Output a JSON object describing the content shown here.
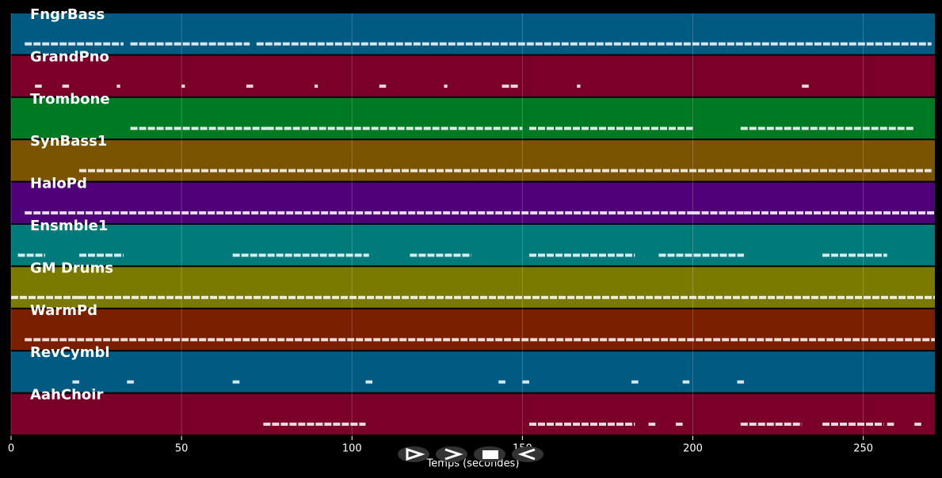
{
  "chart_data": {
    "type": "pianoroll",
    "xlabel": "Temps (secondes)",
    "xlim": [
      0,
      271
    ],
    "xticks": [
      0,
      50,
      100,
      150,
      200,
      250
    ],
    "grid": true,
    "tracks": [
      {
        "name": "FngrBass",
        "color": "#005a82",
        "notes": [
          [
            4,
            33
          ],
          [
            35,
            70
          ],
          [
            72,
            270
          ]
        ]
      },
      {
        "name": "GrandPno",
        "color": "#7a002a",
        "notes": [
          [
            7,
            9
          ],
          [
            15,
            17
          ],
          [
            31,
            32
          ],
          [
            50,
            51
          ],
          [
            69,
            71
          ],
          [
            89,
            90
          ],
          [
            108,
            110
          ],
          [
            127,
            128
          ],
          [
            144,
            149
          ],
          [
            166,
            167
          ],
          [
            232,
            234
          ]
        ]
      },
      {
        "name": "Trombone",
        "color": "#007a22",
        "notes": [
          [
            35,
            75
          ],
          [
            75,
            150
          ],
          [
            152,
            200
          ],
          [
            214,
            265
          ]
        ]
      },
      {
        "name": "SynBass1",
        "color": "#7a5400",
        "notes": [
          [
            20,
            270
          ]
        ]
      },
      {
        "name": "HaloPd",
        "color": "#500078",
        "notes": [
          [
            4,
            200
          ],
          [
            200,
            215
          ],
          [
            215,
            271
          ]
        ]
      },
      {
        "name": "Ensmble1",
        "color": "#007a7a",
        "notes": [
          [
            2,
            10
          ],
          [
            20,
            33
          ],
          [
            65,
            105
          ],
          [
            117,
            135
          ],
          [
            152,
            183
          ],
          [
            190,
            215
          ],
          [
            238,
            257
          ]
        ]
      },
      {
        "name": "GM Drums",
        "color": "#7a7a00",
        "notes": [
          [
            0,
            20
          ],
          [
            20,
            271
          ]
        ]
      },
      {
        "name": "WarmPd",
        "color": "#7a2000",
        "notes": [
          [
            4,
            271
          ]
        ]
      },
      {
        "name": "RevCymbl",
        "color": "#005a82",
        "notes": [
          [
            18,
            20
          ],
          [
            34,
            36
          ],
          [
            65,
            67
          ],
          [
            104,
            106
          ],
          [
            143,
            145
          ],
          [
            150,
            152
          ],
          [
            182,
            184
          ],
          [
            197,
            199
          ],
          [
            213,
            215
          ]
        ]
      },
      {
        "name": "AahChoir",
        "color": "#7a002a",
        "notes": [
          [
            74,
            104
          ],
          [
            152,
            183
          ],
          [
            187,
            189
          ],
          [
            195,
            197
          ],
          [
            214,
            232
          ],
          [
            238,
            256
          ],
          [
            257,
            259
          ],
          [
            265,
            267
          ]
        ]
      }
    ]
  }
}
